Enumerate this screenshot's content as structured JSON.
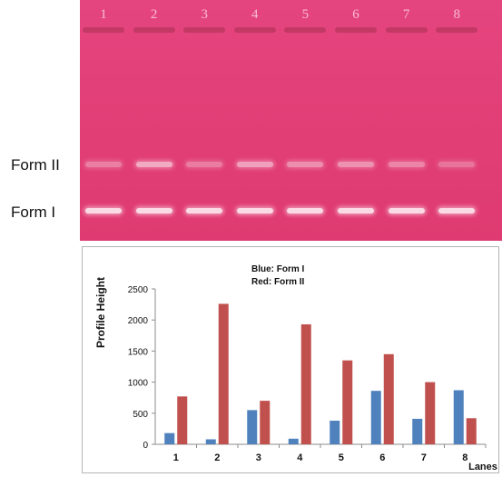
{
  "gel": {
    "lane_numbers": [
      "1",
      "2",
      "3",
      "4",
      "5",
      "6",
      "7",
      "8"
    ],
    "labels": {
      "form_ii": "Form II",
      "form_i": "Form I"
    }
  },
  "chart_data": {
    "type": "bar",
    "categories": [
      "1",
      "2",
      "3",
      "4",
      "5",
      "6",
      "7",
      "8"
    ],
    "series": [
      {
        "name": "Form I",
        "color": "#4f81bd",
        "values": [
          180,
          80,
          550,
          90,
          380,
          860,
          410,
          870
        ]
      },
      {
        "name": "Form II",
        "color": "#c0504d",
        "values": [
          770,
          2260,
          700,
          1930,
          1350,
          1450,
          1000,
          420
        ]
      }
    ],
    "ylabel": "Profile Height",
    "xlabel": "Lanes",
    "ylim": [
      0,
      2500
    ],
    "yticks": [
      "0",
      "500",
      "1000",
      "1500",
      "2000",
      "2500"
    ],
    "annotation_lines": [
      "Blue: Form I",
      "Red: Form II"
    ],
    "grid": false
  }
}
